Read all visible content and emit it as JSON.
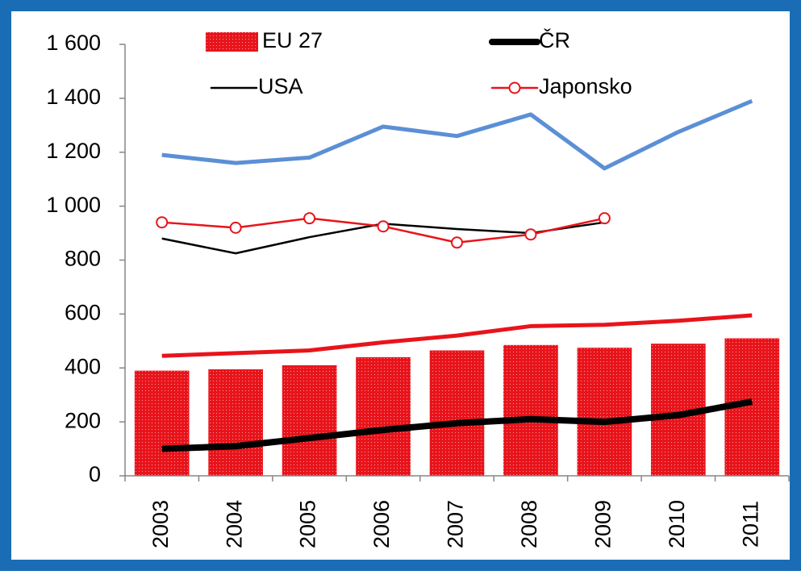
{
  "chart_data": {
    "type": "combo",
    "categories": [
      "2003",
      "2004",
      "2005",
      "2006",
      "2007",
      "2008",
      "2009",
      "2010",
      "2011"
    ],
    "series": [
      {
        "name": "EU 27",
        "type": "bar",
        "color": "#e8141b",
        "values": [
          390,
          395,
          410,
          440,
          465,
          485,
          475,
          490,
          510
        ]
      },
      {
        "type": "line",
        "color": "#5b8fd6",
        "width": 5,
        "values": [
          1190,
          1160,
          1180,
          1295,
          1260,
          1340,
          1140,
          1275,
          1390
        ]
      },
      {
        "type": "line",
        "color": "#e8141b",
        "width": 5,
        "values": [
          445,
          455,
          465,
          495,
          520,
          555,
          560,
          575,
          595
        ]
      },
      {
        "name": "ČR",
        "type": "line",
        "color": "#000000",
        "width": 8,
        "values": [
          100,
          110,
          140,
          170,
          195,
          210,
          200,
          225,
          275
        ]
      },
      {
        "name": "USA",
        "type": "line",
        "color": "#000000",
        "width": 2.5,
        "values": [
          880,
          825,
          885,
          935,
          915,
          900,
          940,
          null,
          null
        ]
      },
      {
        "name": "Japonsko",
        "type": "line",
        "color": "#e8141b",
        "width": 2.5,
        "marker": "circle",
        "values": [
          940,
          920,
          955,
          925,
          865,
          895,
          955,
          null,
          null
        ]
      }
    ],
    "ylim": [
      0,
      1600
    ],
    "yticks": [
      0,
      200,
      400,
      600,
      800,
      {
        "value": 1000,
        "label": "1 000"
      },
      {
        "value": 1200,
        "label": "1 200"
      },
      {
        "value": 1400,
        "label": "1 400"
      },
      {
        "value": 1600,
        "label": "1 600"
      }
    ],
    "grid": false
  }
}
